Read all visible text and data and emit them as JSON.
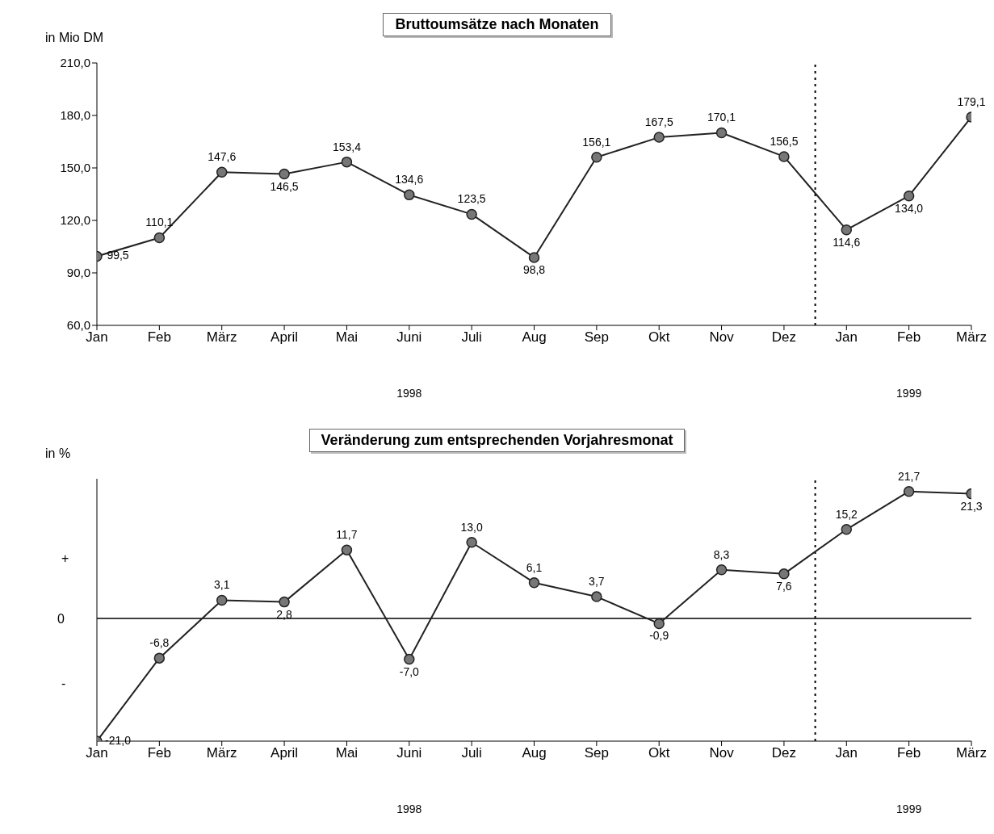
{
  "chart_data": [
    {
      "type": "line",
      "title": "Bruttoumsätze nach Monaten",
      "ylabel": "in Mio DM",
      "categories": [
        "Jan",
        "Feb",
        "März",
        "April",
        "Mai",
        "Juni",
        "Juli",
        "Aug",
        "Sep",
        "Okt",
        "Nov",
        "Dez",
        "Jan",
        "Feb",
        "März"
      ],
      "series": [
        {
          "color": "#222222",
          "values": [
            99.5,
            110.1,
            147.6,
            146.5,
            153.4,
            134.6,
            123.5,
            98.8,
            156.1,
            167.5,
            170.1,
            156.5,
            114.6,
            134.0,
            179.1
          ],
          "value_labels": [
            "99,5",
            "110,1",
            "147,6",
            "146,5",
            "153,4",
            "134,6",
            "123,5",
            "98,8",
            "156,1",
            "167,5",
            "170,1",
            "156,5",
            "114,6",
            "134,0",
            "179,1"
          ]
        }
      ],
      "ylim": [
        60,
        210
      ],
      "yticks": [
        {
          "value": 60,
          "label": "60,0"
        },
        {
          "value": 90,
          "label": "90,0"
        },
        {
          "value": 120,
          "label": "120,0"
        },
        {
          "value": 150,
          "label": "150,0"
        },
        {
          "value": 180,
          "label": "180,0"
        },
        {
          "value": 210,
          "label": "210,0"
        }
      ],
      "marker": "circle",
      "line_style": "solid",
      "annotations": [
        "1998",
        "1999"
      ]
    },
    {
      "type": "line",
      "title": "Veränderung zum entsprechenden Vorjahresmonat",
      "ylabel": "in %",
      "categories": [
        "Jan",
        "Feb",
        "März",
        "April",
        "Mai",
        "Juni",
        "Juli",
        "Aug",
        "Sep",
        "Okt",
        "Nov",
        "Dez",
        "Jan",
        "Feb",
        "März"
      ],
      "series": [
        {
          "color": "#222222",
          "values": [
            -21.0,
            -6.8,
            3.1,
            2.8,
            11.7,
            -7.0,
            13.0,
            6.1,
            3.7,
            -0.9,
            8.3,
            7.6,
            15.2,
            21.7,
            21.3
          ],
          "value_labels": [
            "-21,0",
            "-6,8",
            "3,1",
            "2,8",
            "11,7",
            "-7,0",
            "13,0",
            "6,1",
            "3,7",
            "-0,9",
            "8,3",
            "7,6",
            "15,2",
            "21,7",
            "21,3"
          ]
        }
      ],
      "marker": "circle",
      "line_style": "solid",
      "ref_lines": [
        {
          "axis": "y",
          "value": 0,
          "line_style": "solid",
          "label": "0"
        }
      ],
      "annotations": [
        "1998",
        "1999",
        "+",
        "-"
      ]
    }
  ]
}
